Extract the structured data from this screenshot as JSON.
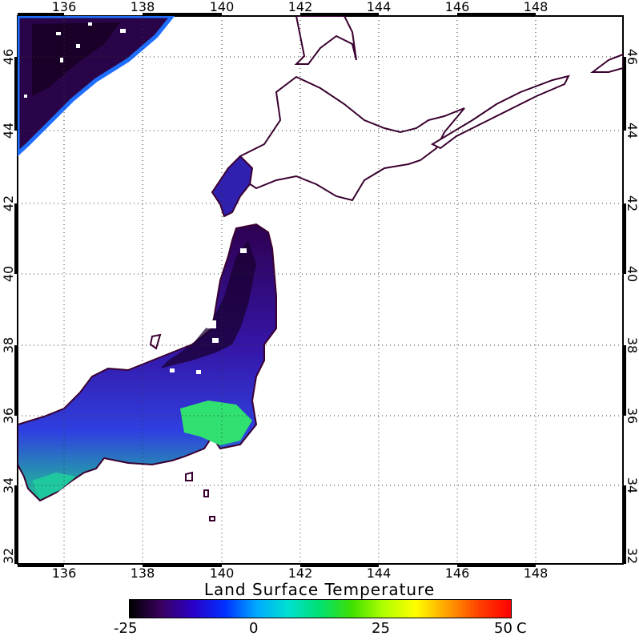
{
  "title": "Land Surface Temperature",
  "map": {
    "lon_ticks": [
      "136",
      "138",
      "140",
      "142",
      "144",
      "146",
      "148"
    ],
    "lat_ticks": [
      "46",
      "44",
      "42",
      "40",
      "38",
      "36",
      "34",
      "32"
    ]
  },
  "colorbar": {
    "labels": [
      "-25",
      "0",
      "25",
      "50"
    ],
    "unit": "C",
    "colors": [
      "#000000",
      "#3a0060",
      "#2a00c8",
      "#0030ff",
      "#00aaff",
      "#00e0d0",
      "#00e070",
      "#40e000",
      "#b0ff00",
      "#ffff00",
      "#ffa000",
      "#ff4000",
      "#ff0000"
    ]
  },
  "colors": {
    "coast": "#3a0030",
    "grid": "#333333",
    "land_cold": "#33005a",
    "land_mid": "#3a20c8",
    "land_warm": "#20d080",
    "sea_edge": "#1f6fff"
  }
}
